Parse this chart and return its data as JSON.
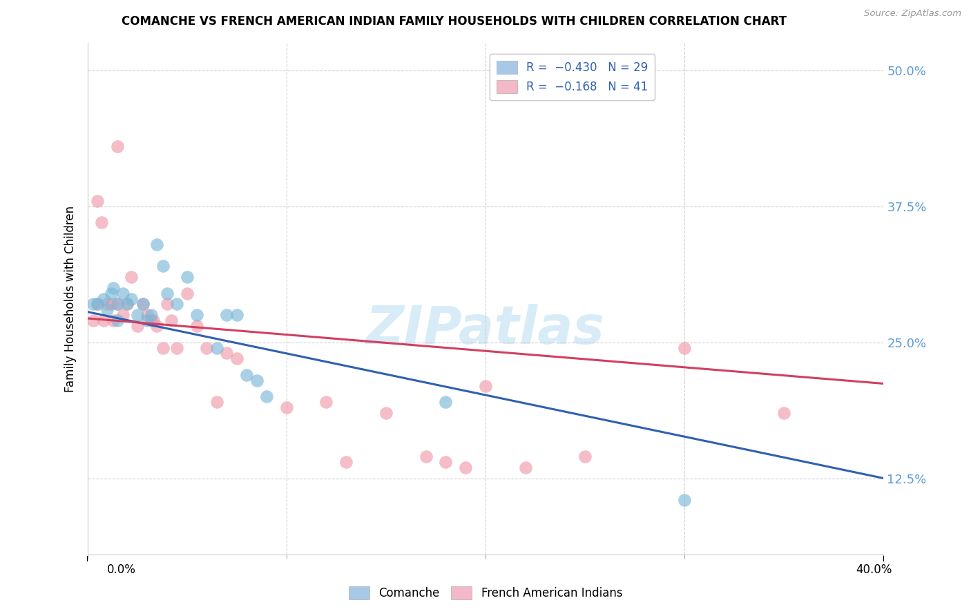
{
  "title": "COMANCHE VS FRENCH AMERICAN INDIAN FAMILY HOUSEHOLDS WITH CHILDREN CORRELATION CHART",
  "source": "Source: ZipAtlas.com",
  "ylabel": "Family Households with Children",
  "yticks": [
    "12.5%",
    "25.0%",
    "37.5%",
    "50.0%"
  ],
  "ytick_vals": [
    0.125,
    0.25,
    0.375,
    0.5
  ],
  "xlim": [
    0.0,
    0.4
  ],
  "ylim": [
    0.055,
    0.525
  ],
  "legend_blue_color": "#a8c8e8",
  "legend_pink_color": "#f4b8c8",
  "blue_color": "#7bb8d8",
  "pink_color": "#f09aaa",
  "line_blue": "#3060b0",
  "line_pink": "#d04060",
  "watermark_text": "ZIPatlas",
  "watermark_color": "#d8ecf8",
  "comanche_x": [
    0.003,
    0.005,
    0.008,
    0.01,
    0.012,
    0.013,
    0.015,
    0.015,
    0.018,
    0.02,
    0.022,
    0.025,
    0.028,
    0.03,
    0.032,
    0.035,
    0.038,
    0.04,
    0.045,
    0.05,
    0.055,
    0.065,
    0.07,
    0.075,
    0.08,
    0.085,
    0.09,
    0.18,
    0.3
  ],
  "comanche_y": [
    0.285,
    0.285,
    0.29,
    0.28,
    0.295,
    0.3,
    0.285,
    0.27,
    0.295,
    0.285,
    0.29,
    0.275,
    0.285,
    0.27,
    0.275,
    0.34,
    0.32,
    0.295,
    0.285,
    0.31,
    0.275,
    0.245,
    0.275,
    0.275,
    0.22,
    0.215,
    0.2,
    0.195,
    0.105
  ],
  "french_x": [
    0.003,
    0.005,
    0.005,
    0.007,
    0.008,
    0.01,
    0.012,
    0.013,
    0.015,
    0.015,
    0.018,
    0.02,
    0.022,
    0.025,
    0.028,
    0.03,
    0.032,
    0.033,
    0.035,
    0.038,
    0.04,
    0.042,
    0.045,
    0.05,
    0.055,
    0.06,
    0.065,
    0.07,
    0.075,
    0.1,
    0.12,
    0.13,
    0.15,
    0.17,
    0.18,
    0.19,
    0.2,
    0.22,
    0.25,
    0.3,
    0.35
  ],
  "french_y": [
    0.27,
    0.38,
    0.285,
    0.36,
    0.27,
    0.285,
    0.285,
    0.27,
    0.43,
    0.285,
    0.275,
    0.285,
    0.31,
    0.265,
    0.285,
    0.275,
    0.27,
    0.27,
    0.265,
    0.245,
    0.285,
    0.27,
    0.245,
    0.295,
    0.265,
    0.245,
    0.195,
    0.24,
    0.235,
    0.19,
    0.195,
    0.14,
    0.185,
    0.145,
    0.14,
    0.135,
    0.21,
    0.135,
    0.145,
    0.245,
    0.185
  ],
  "line_blue_x0": 0.0,
  "line_blue_y0": 0.278,
  "line_blue_x1": 0.4,
  "line_blue_y1": 0.125,
  "line_pink_x0": 0.0,
  "line_pink_y0": 0.272,
  "line_pink_x1": 0.4,
  "line_pink_y1": 0.212
}
